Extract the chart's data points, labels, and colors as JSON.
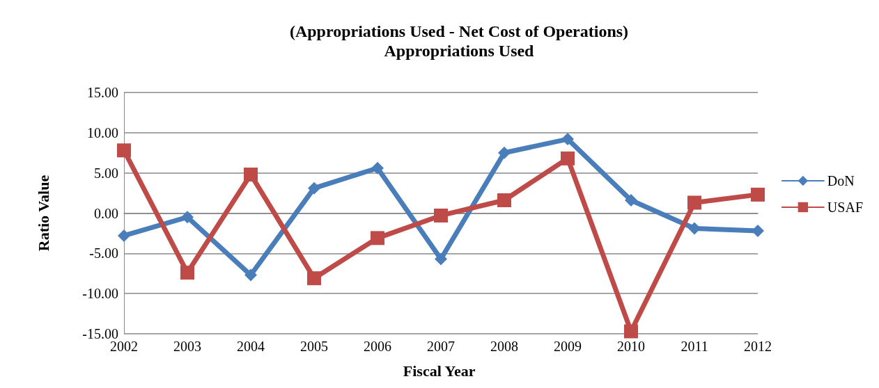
{
  "chart_data": {
    "type": "line",
    "title": "(Appropriations Used - Net Cost of Operations)",
    "subtitle": "Appropriations Used",
    "xlabel": "Fiscal Year",
    "ylabel": "Ratio Value",
    "categories": [
      "2002",
      "2003",
      "2004",
      "2005",
      "2006",
      "2007",
      "2008",
      "2009",
      "2010",
      "2011",
      "2012"
    ],
    "series": [
      {
        "name": "DoN",
        "color": "#4a7ebb",
        "marker": "diamond",
        "values": [
          -2.8,
          -0.5,
          -7.7,
          3.1,
          5.6,
          -5.7,
          7.5,
          9.2,
          1.6,
          -1.9,
          -2.2
        ]
      },
      {
        "name": "USAF",
        "color": "#be4b48",
        "marker": "square",
        "values": [
          7.8,
          -7.4,
          4.8,
          -8.1,
          -3.1,
          -0.3,
          1.6,
          6.8,
          -14.7,
          1.3,
          2.3
        ]
      }
    ],
    "ylim": [
      -15,
      15
    ],
    "yticks": [
      {
        "value": -15,
        "label": "-15.00"
      },
      {
        "value": -10,
        "label": "-10.00"
      },
      {
        "value": -5,
        "label": "-5.00"
      },
      {
        "value": 0,
        "label": "0.00"
      },
      {
        "value": 5,
        "label": "5.00"
      },
      {
        "value": 10,
        "label": "10.00"
      },
      {
        "value": 15,
        "label": "15.00"
      }
    ],
    "grid": "y",
    "legend": "right",
    "line_style": "solid"
  }
}
